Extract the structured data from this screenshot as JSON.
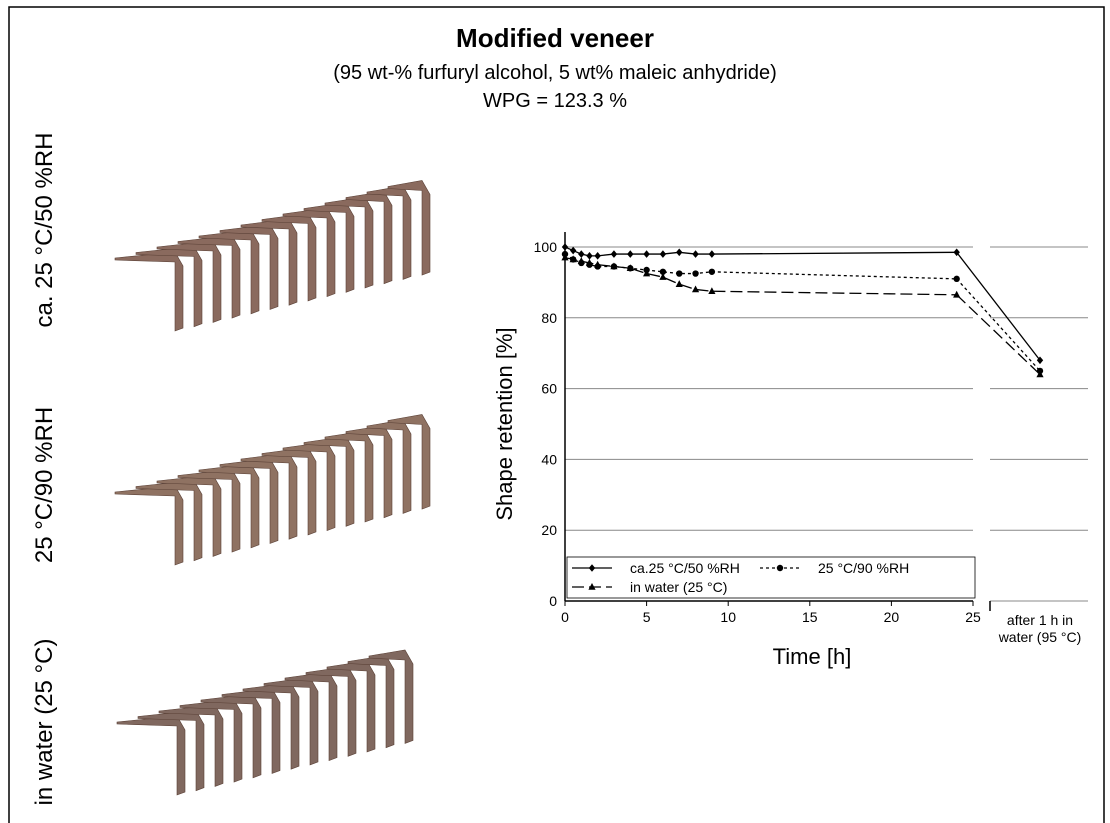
{
  "chart_data": {
    "type": "line",
    "title": "Modified veneer",
    "subtitle": "(95 wt-% furfuryl alcohol, 5 wt% maleic anhydride)",
    "subtitle2": "WPG = 123.3 %",
    "panel_labels": [
      "ca. 25 °C/50 %RH",
      "25 °C/90 %RH",
      "in water (25 °C)"
    ],
    "x_label": "Time [h]",
    "y_label": "Shape retention [%]",
    "x": [
      0,
      0.5,
      1,
      1.5,
      2,
      3,
      4,
      5,
      6,
      7,
      8,
      9,
      24
    ],
    "extra_category": [
      "after 1 h in",
      "water (95 °C)"
    ],
    "series": [
      {
        "name": "ca.25 °C/50 %RH",
        "color": "#000000",
        "marker": "diamond",
        "dash": "none",
        "values": [
          100,
          99,
          98,
          97.5,
          97.5,
          98,
          98,
          98,
          98,
          98.5,
          98,
          98,
          98.5
        ],
        "extra_value": 68
      },
      {
        "name": "25 °C/90 %RH",
        "color": "#000000",
        "marker": "circle",
        "dash": "3 3",
        "values": [
          98,
          96.5,
          95.5,
          95,
          94.5,
          94.5,
          94,
          93.5,
          93,
          92.5,
          92.5,
          93,
          91
        ],
        "extra_value": 65
      },
      {
        "name": "in water (25 °C)",
        "color": "#000000",
        "marker": "triangle",
        "dash": "12 5",
        "values": [
          97,
          96.5,
          96,
          95.5,
          95,
          94.5,
          94,
          92.5,
          91.5,
          89.5,
          88,
          87.5,
          86.5
        ],
        "extra_value": 64
      }
    ],
    "xlim": [
      0,
      25
    ],
    "xticks": [
      0,
      5,
      10,
      15,
      20,
      25
    ],
    "ylim": [
      0,
      100
    ],
    "yticks": [
      0,
      20,
      40,
      60,
      80,
      100
    ],
    "grid": true,
    "legend": "bottom"
  }
}
